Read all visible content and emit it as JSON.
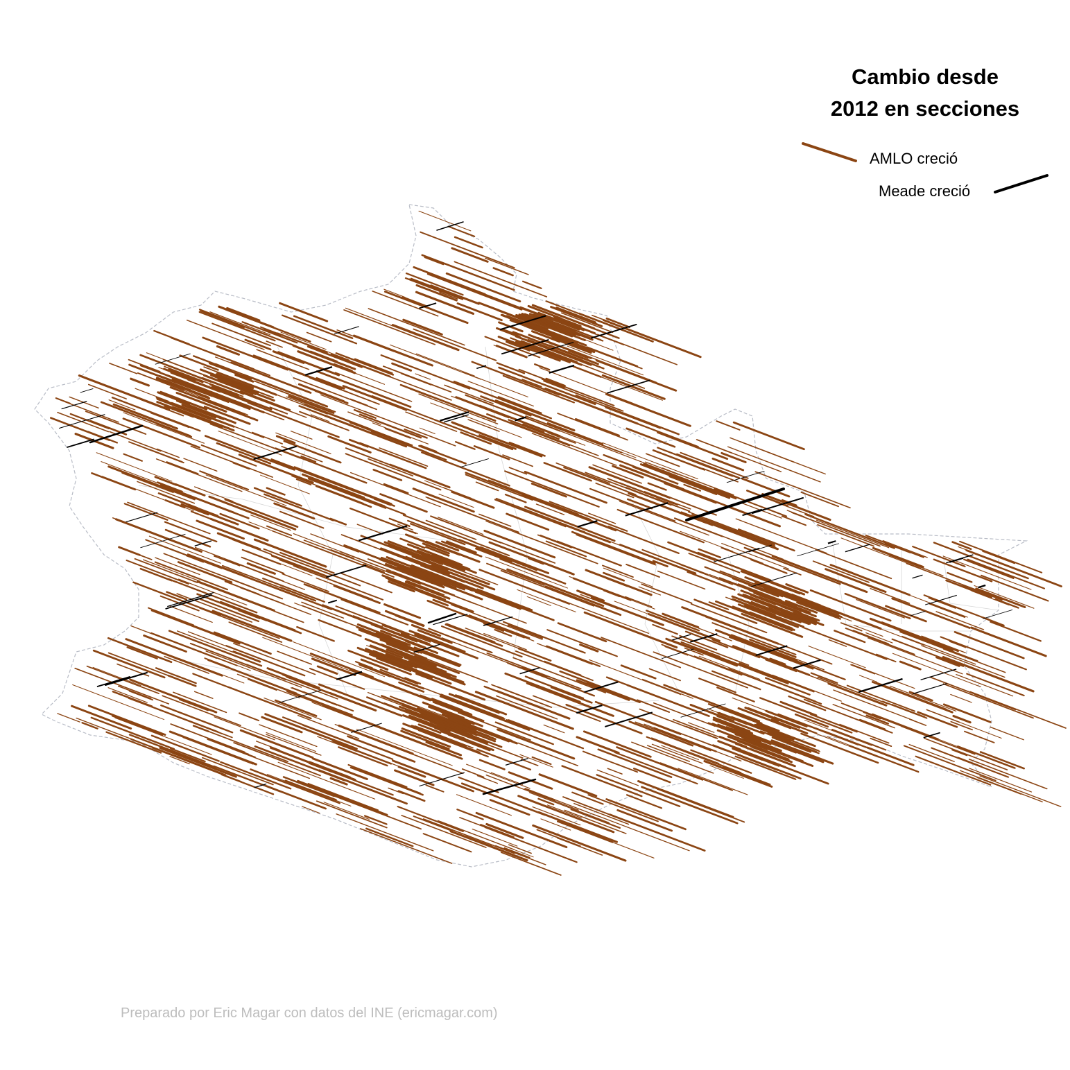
{
  "title": {
    "line1": "Cambio desde",
    "line2": "2012 en secciones"
  },
  "legend": {
    "items": [
      {
        "label": "AMLO creció",
        "color": "#8B4513"
      },
      {
        "label": "Meade creció",
        "color": "#000000"
      }
    ]
  },
  "credit": "Preparado por Eric Magar con datos del INE (ericmagar.com)",
  "colors": {
    "amlo": "#8B4513",
    "meade": "#000000",
    "boundary": "#b8bcc6",
    "inner_boundary": "#d6d6d6"
  }
}
